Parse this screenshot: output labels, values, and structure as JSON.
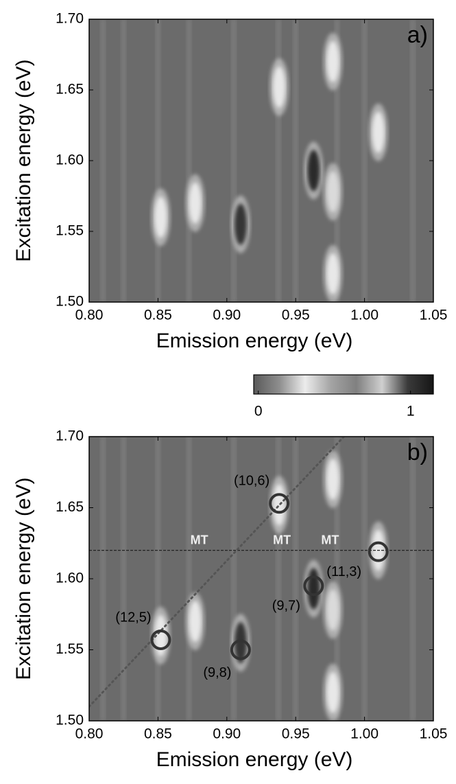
{
  "chart_data": [
    {
      "type": "heatmap",
      "panel_label": "a)",
      "x_label": "Emission energy (eV)",
      "y_label": "Excitation energy (eV)",
      "xlim": [
        0.8,
        1.05
      ],
      "ylim": [
        1.5,
        1.7
      ],
      "xticks": [
        {
          "value": 0.8,
          "label": "0.80"
        },
        0.85,
        {
          "value": 0.9,
          "label": "0.90"
        },
        0.95,
        {
          "value": 1.0,
          "label": "1.00"
        },
        1.05
      ],
      "yticks": [
        {
          "value": 1.5,
          "label": "1.50"
        },
        1.55,
        {
          "value": 1.6,
          "label": "1.60"
        },
        1.65,
        {
          "value": 1.7,
          "label": "1.70"
        }
      ],
      "background": "#6b6b6b",
      "peaks": [
        {
          "x": 0.91,
          "y": 1.555,
          "value": 1.0
        },
        {
          "x": 0.963,
          "y": 1.593,
          "value": 1.05
        },
        {
          "x": 0.938,
          "y": 1.652,
          "value": 0.3
        },
        {
          "x": 1.01,
          "y": 1.62,
          "value": 0.3
        },
        {
          "x": 0.977,
          "y": 1.578,
          "value": 0.35
        },
        {
          "x": 0.852,
          "y": 1.56,
          "value": 0.3
        },
        {
          "x": 0.877,
          "y": 1.57,
          "value": 0.3
        },
        {
          "x": 0.977,
          "y": 1.52,
          "value": 0.3
        },
        {
          "x": 0.977,
          "y": 1.67,
          "value": 0.3
        }
      ]
    },
    {
      "type": "colorbar",
      "range": [
        -0.03,
        1.15
      ],
      "ticks": [
        0,
        1
      ],
      "colors": [
        "#5a5a5a",
        "#8e8e8e",
        "#ececec",
        "#a4a4a4",
        "#808080",
        "#cfcfcf",
        "#3a3a3a",
        "#161616"
      ]
    },
    {
      "type": "heatmap",
      "panel_label": "b)",
      "x_label": "Emission energy (eV)",
      "y_label": "Excitation energy (eV)",
      "xlim": [
        0.8,
        1.05
      ],
      "ylim": [
        1.5,
        1.7
      ],
      "xticks": [
        {
          "value": 0.8,
          "label": "0.80"
        },
        0.85,
        {
          "value": 0.9,
          "label": "0.90"
        },
        0.95,
        {
          "value": 1.0,
          "label": "1.00"
        },
        1.05
      ],
      "yticks": [
        {
          "value": 1.5,
          "label": "1.50"
        },
        1.55,
        {
          "value": 1.6,
          "label": "1.60"
        },
        1.65,
        {
          "value": 1.7,
          "label": "1.70"
        }
      ],
      "background": "#6b6b6b",
      "peaks": [
        {
          "x": 0.91,
          "y": 1.555,
          "value": 1.0
        },
        {
          "x": 0.963,
          "y": 1.593,
          "value": 1.05
        },
        {
          "x": 0.938,
          "y": 1.652,
          "value": 0.3
        },
        {
          "x": 1.01,
          "y": 1.62,
          "value": 0.3
        },
        {
          "x": 0.977,
          "y": 1.578,
          "value": 0.35
        },
        {
          "x": 0.852,
          "y": 1.56,
          "value": 0.3
        },
        {
          "x": 0.877,
          "y": 1.57,
          "value": 0.3
        },
        {
          "x": 0.977,
          "y": 1.52,
          "value": 0.3
        },
        {
          "x": 0.977,
          "y": 1.67,
          "value": 0.3
        }
      ],
      "hline": 1.62,
      "diagonal": {
        "x": [
          0.8,
          0.985
        ],
        "y": [
          1.51,
          1.7
        ]
      },
      "annotations": [
        {
          "text": "(12,5)",
          "x": 0.852,
          "y": 1.557
        },
        {
          "text": "(9,8)",
          "x": 0.91,
          "y": 1.55
        },
        {
          "text": "(10,6)",
          "x": 0.938,
          "y": 1.653
        },
        {
          "text": "(9,7)",
          "x": 0.963,
          "y": 1.595
        },
        {
          "text": "(11,3)",
          "x": 1.01,
          "y": 1.619
        }
      ],
      "labels": [
        {
          "text": "MT",
          "x": 0.88,
          "y": 1.62
        },
        {
          "text": "MT",
          "x": 0.94,
          "y": 1.62
        },
        {
          "text": "MT",
          "x": 0.975,
          "y": 1.62
        }
      ]
    }
  ]
}
